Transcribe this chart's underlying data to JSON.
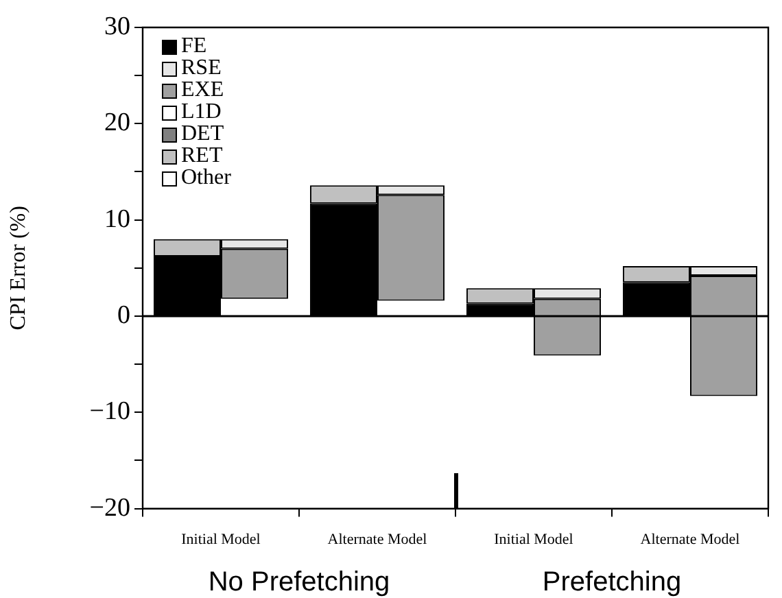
{
  "chart_data": {
    "type": "bar",
    "stacked": true,
    "ylabel": "CPI Error (%)",
    "categories": [
      "Initial Model",
      "Alternate Model",
      "Initial Model",
      "Alternate Model"
    ],
    "series": [
      {
        "name": "FE",
        "color": "#000000",
        "values": [
          6.2,
          11.7,
          1.3,
          3.5
        ],
        "base": [
          0,
          0,
          0,
          0
        ]
      },
      {
        "name": "RSE",
        "color": "#e6e6e6",
        "values": [
          -1.0,
          -1.0,
          -1.1,
          -1.0
        ],
        "base": [
          8.0,
          13.6,
          2.9,
          5.2
        ]
      },
      {
        "name": "EXE",
        "color": "#a0a0a0",
        "values": [
          -5.2,
          -11.0,
          -5.9,
          -12.5
        ],
        "base": [
          7.0,
          12.6,
          1.8,
          4.2
        ]
      },
      {
        "name": "L1D",
        "color": "#ffffff",
        "values": [
          0,
          0,
          0,
          0
        ]
      },
      {
        "name": "DET",
        "color": "#808080",
        "values": [
          0,
          0,
          0,
          0
        ]
      },
      {
        "name": "RET",
        "color": "#c0c0c0",
        "values": [
          1.8,
          1.9,
          1.6,
          1.7
        ],
        "base": [
          6.2,
          11.7,
          1.3,
          3.5
        ]
      },
      {
        "name": "Other",
        "color": "#ffffff",
        "values": [
          0,
          0,
          0,
          0
        ]
      }
    ],
    "ylim": [
      -20,
      30
    ],
    "yticks": [
      -20,
      {
        "value": -15,
        "label": null
      },
      -10,
      {
        "value": -5,
        "label": null
      },
      0,
      {
        "value": 5,
        "label": null
      },
      10,
      {
        "value": 15,
        "label": null
      },
      20,
      {
        "value": 25,
        "label": null
      },
      30
    ],
    "ref_lines": [
      {
        "axis": "y",
        "value": 0
      }
    ],
    "annotations": [
      "No Prefetching",
      "Prefetching"
    ],
    "grid": false,
    "legend": "top left"
  }
}
